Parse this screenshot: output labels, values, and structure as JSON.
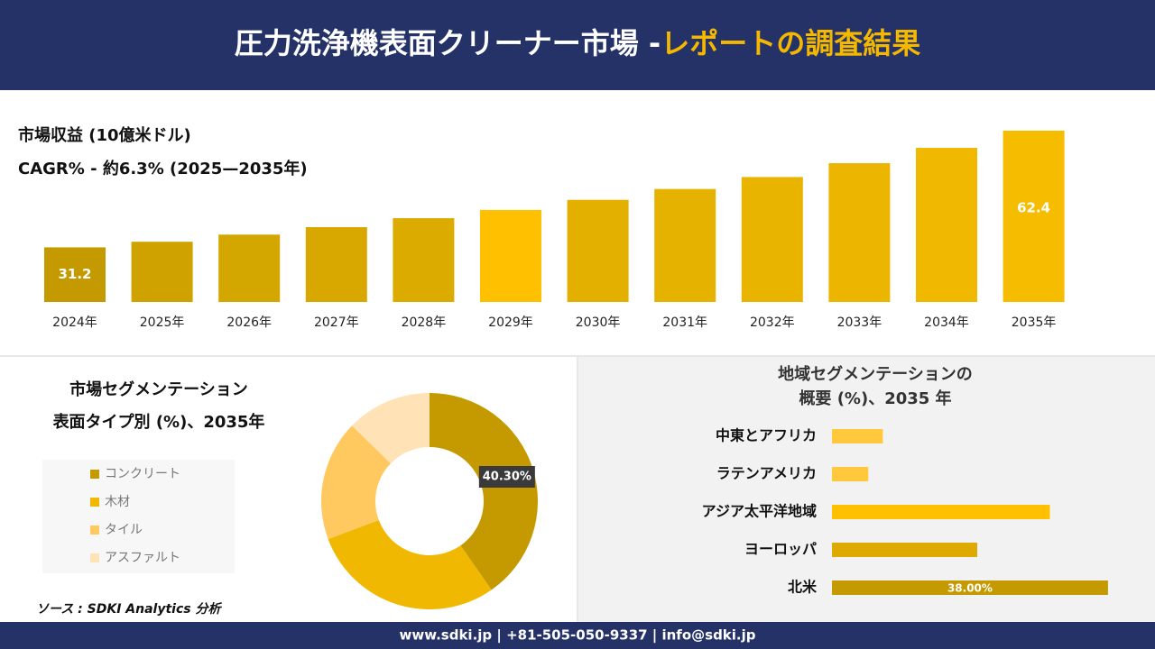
{
  "header": {
    "title": "圧力洗浄機表面クリーナー市場 -",
    "title_highlight": "レポートの調査結果"
  },
  "chart_data": [
    {
      "type": "bar",
      "title": "市場収益 (10億米ドル)",
      "subtitle": "CAGR% - 約6.3% (2025—2035年)",
      "categories": [
        "2024年",
        "2025年",
        "2026年",
        "2027年",
        "2028年",
        "2029年",
        "2030年",
        "2031年",
        "2032年",
        "2033年",
        "2034年",
        "2035年"
      ],
      "values": [
        31.2,
        32.7,
        34.6,
        36.6,
        39.0,
        41.2,
        43.9,
        46.8,
        50.0,
        53.7,
        57.8,
        62.4
      ],
      "colors": [
        "#c49a00",
        "#cfa200",
        "#d4a600",
        "#d8a800",
        "#dcab00",
        "#ffc000",
        "#e3b000",
        "#e6b200",
        "#e9b400",
        "#ecb600",
        "#f0b900",
        "#f5bc00"
      ],
      "ylim": [
        16.6,
        66
      ]
    },
    {
      "type": "donut",
      "title": "市場セグメンテーション",
      "subtitle": "表面タイプ別 (%)、2035年",
      "categories": [
        "コンクリート",
        "木材",
        "タイル",
        "アスファルト"
      ],
      "values": [
        40.3,
        29.0,
        18.0,
        12.7
      ],
      "value_labels": [
        "40.30%",
        null,
        null,
        null
      ],
      "colors": [
        "#c49a00",
        "#f0b800",
        "#ffc960",
        "#ffe2b5"
      ]
    },
    {
      "type": "hbar",
      "title": "地域セグメンテーションの",
      "subtitle": "概要 (%)、2035 年",
      "categories": [
        "中東とアフリカ",
        "ラテンアメリカ",
        "アジア太平洋地域",
        "ヨーロッパ",
        "北米"
      ],
      "values": [
        7.0,
        5.0,
        30.0,
        20.0,
        38.0
      ],
      "value_labels": [
        null,
        null,
        null,
        null,
        "38.00%"
      ],
      "colors": [
        "#ffc83d",
        "#ffc83d",
        "#ffc000",
        "#deaa00",
        "#c49a00"
      ],
      "xlim": [
        0,
        40
      ]
    }
  ],
  "source": "ソース : SDKI Analytics 分析",
  "footer": "www.sdki.jp | +81-505-050-9337 | info@sdki.jp"
}
